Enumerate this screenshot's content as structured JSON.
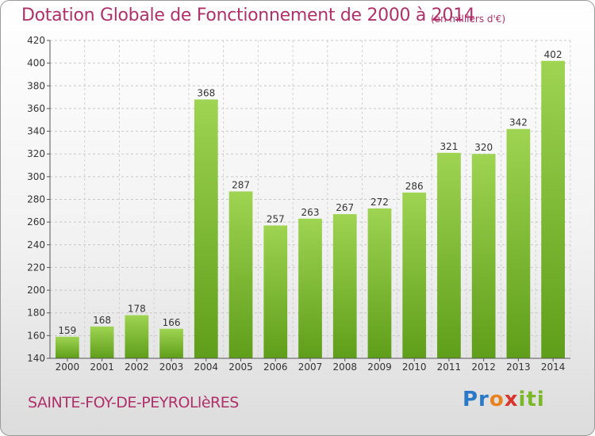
{
  "title": "Dotation Globale de Fonctionnement de 2000 à 2014",
  "unit": "(en milliers d'€)",
  "commune": "SAINTE-FOY-DE-PEYROLlèRES",
  "logo": {
    "p1": "Pr",
    "p2": "o",
    "p3": "x",
    "p4": "iti"
  },
  "colors": {
    "title": "#b0306a",
    "bar_top": "#9ed452",
    "bar_bottom": "#5f9e1a"
  },
  "chart_data": {
    "type": "bar",
    "title": "Dotation Globale de Fonctionnement de 2000 à 2014",
    "categories": [
      "2000",
      "2001",
      "2002",
      "2003",
      "2004",
      "2005",
      "2006",
      "2007",
      "2008",
      "2009",
      "2010",
      "2011",
      "2012",
      "2013",
      "2014"
    ],
    "values": [
      159,
      168,
      178,
      166,
      368,
      287,
      257,
      263,
      267,
      272,
      286,
      321,
      320,
      342,
      402
    ],
    "ylim": [
      140,
      420
    ],
    "yticks": [
      140,
      160,
      180,
      200,
      220,
      240,
      260,
      280,
      300,
      320,
      340,
      360,
      380,
      400,
      420
    ],
    "grid": true,
    "xlabel": "",
    "ylabel": ""
  }
}
